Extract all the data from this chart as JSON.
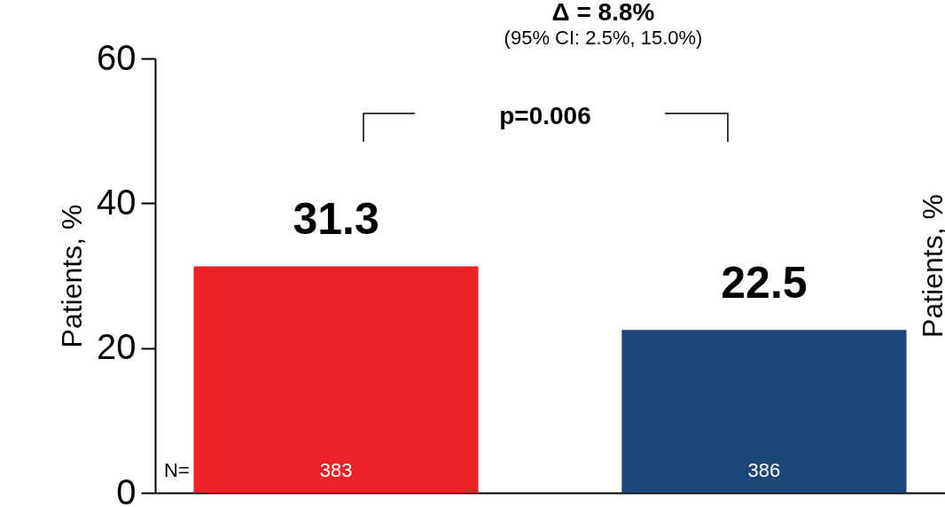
{
  "chart_data": {
    "type": "bar",
    "title": "Δ = 8.8%",
    "subtitle": "(95% CI: 2.5%, 15.0%)",
    "ylabel": "Patients, %",
    "y2label": "Patients, %",
    "categories": [
      null,
      null
    ],
    "values": [
      31.3,
      22.5
    ],
    "colors": [
      "#ec2227",
      "#1d4778"
    ],
    "ylim": [
      0,
      60
    ],
    "yticks": [
      0,
      20,
      40,
      60
    ],
    "grid": false,
    "legend": false,
    "data_labels": true,
    "annotations": [
      "p=0.006",
      "N=",
      "383",
      "386"
    ]
  }
}
